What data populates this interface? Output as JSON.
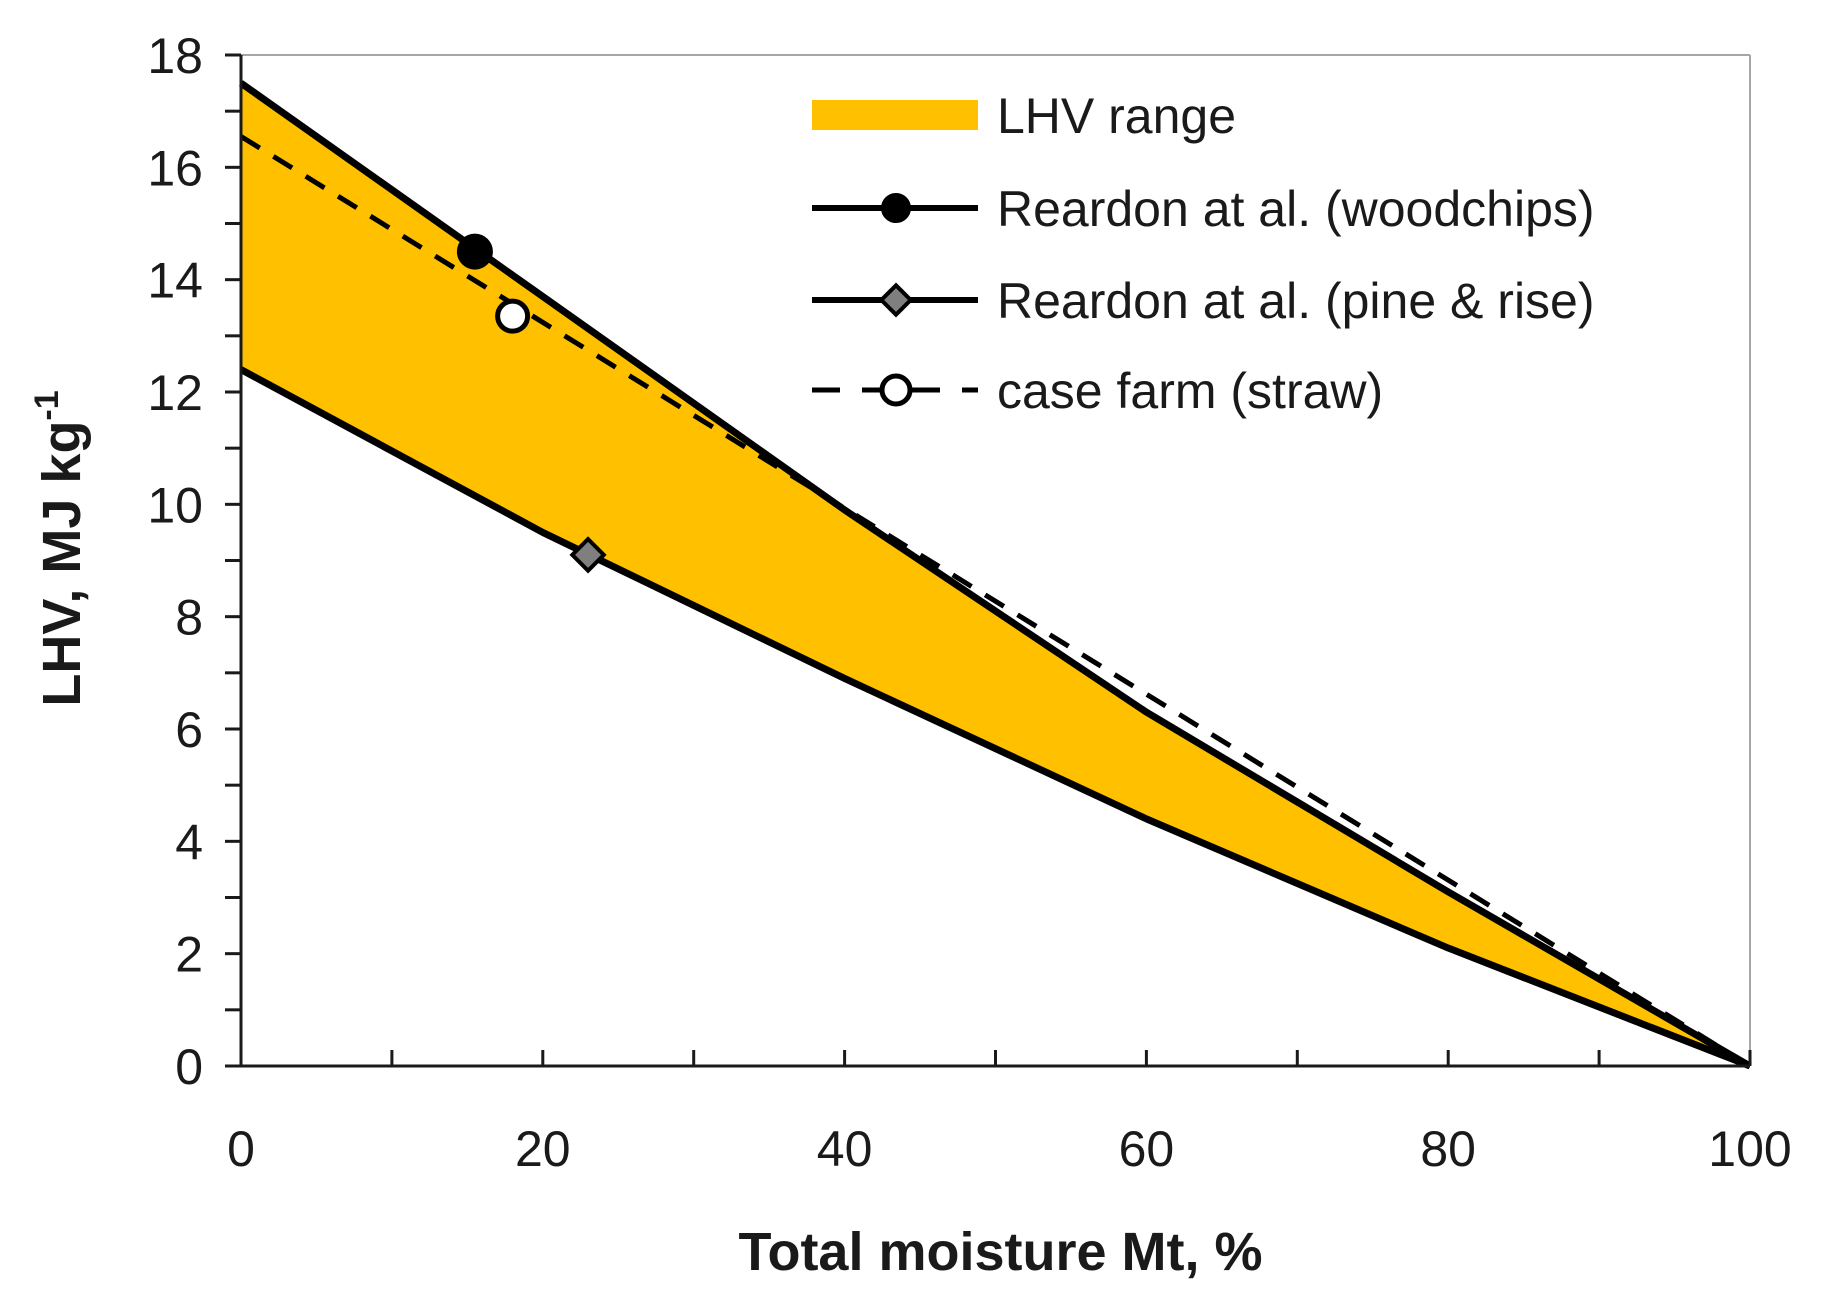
{
  "chart_data": {
    "type": "line",
    "title": "",
    "xlabel": "Total moisture Mt, %",
    "ylabel_main": "LHV, MJ kg",
    "ylabel_sup": "-1",
    "xlim": [
      0,
      100
    ],
    "ylim": [
      0,
      18
    ],
    "x_ticks": [
      0,
      20,
      40,
      60,
      80,
      100
    ],
    "x_minor_ticks": [
      10,
      30,
      50,
      70,
      90
    ],
    "y_ticks": [
      0,
      2,
      4,
      6,
      8,
      10,
      12,
      14,
      16,
      18
    ],
    "y_minor_ticks": [
      1,
      3,
      5,
      7,
      9,
      11,
      13,
      15,
      17
    ],
    "x_tick_labels": [
      "0",
      "20",
      "40",
      "60",
      "80",
      "100"
    ],
    "y_tick_labels": [
      "0",
      "2",
      "4",
      "6",
      "8",
      "10",
      "12",
      "14",
      "16",
      "18"
    ],
    "grid": false,
    "legend_position": "top-right",
    "range": {
      "name": "LHV range",
      "color": "#FFC000",
      "upper": {
        "x": [
          0,
          20,
          40,
          60,
          80,
          100
        ],
        "y": [
          17.5,
          13.7,
          9.9,
          6.3,
          3.1,
          0
        ]
      },
      "lower": {
        "x": [
          0,
          20,
          40,
          60,
          80,
          100
        ],
        "y": [
          12.4,
          9.5,
          6.9,
          4.4,
          2.1,
          0
        ]
      }
    },
    "series": [
      {
        "name": "Reardon at al. (woodchips)",
        "style": "solid",
        "marker": "circle",
        "marker_fill": "#000000",
        "x": [
          0,
          20,
          40,
          60,
          80,
          100
        ],
        "y": [
          17.5,
          13.7,
          9.9,
          6.3,
          3.1,
          0
        ],
        "point": {
          "x": 15.5,
          "y": 14.5
        }
      },
      {
        "name": "Reardon at al. (pine & rise)",
        "style": "solid",
        "marker": "diamond",
        "marker_fill": "#7f7f7f",
        "x": [
          0,
          20,
          40,
          60,
          80,
          100
        ],
        "y": [
          12.4,
          9.5,
          6.9,
          4.4,
          2.1,
          0
        ],
        "point": {
          "x": 23,
          "y": 9.1
        }
      },
      {
        "name": "case farm (straw)",
        "style": "dashed",
        "marker": "circle",
        "marker_fill": "#ffffff",
        "x": [
          0,
          100
        ],
        "y": [
          16.55,
          0
        ],
        "point": {
          "x": 18,
          "y": 13.35
        }
      }
    ],
    "colors": {
      "axis": "#1a1a1a",
      "frame": "#a6a6a6",
      "line": "#000000"
    }
  }
}
